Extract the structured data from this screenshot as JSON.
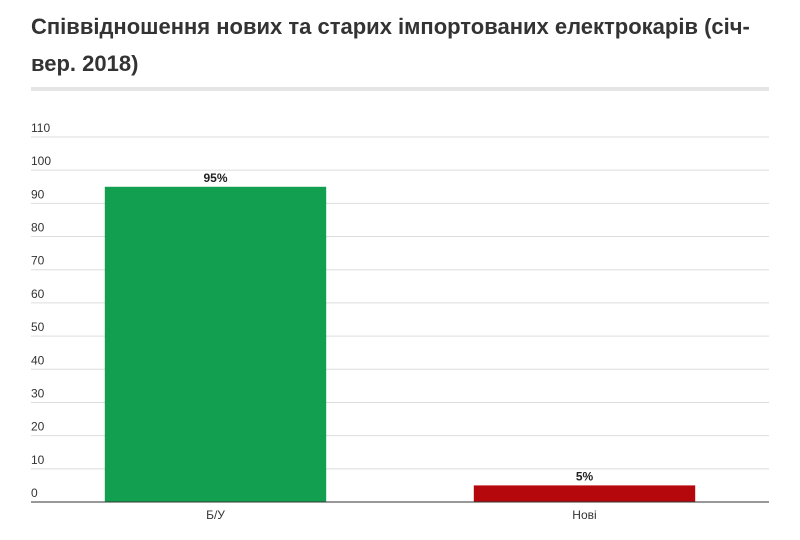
{
  "title": "Співвідношення нових та старих імпортованих електрокарів (січ-вер. 2018)",
  "chart_data": {
    "type": "bar",
    "title": "Співвідношення нових та старих імпортованих електрокарів (січ-вер. 2018)",
    "categories": [
      "Б/У",
      "Нові"
    ],
    "values": [
      95,
      5
    ],
    "data_labels": [
      "95%",
      "5%"
    ],
    "bar_colors": [
      "#12a050",
      "#b5080d"
    ],
    "ylim": [
      0,
      110
    ],
    "yticks": [
      0,
      10,
      20,
      30,
      40,
      50,
      60,
      70,
      80,
      90,
      100,
      110
    ],
    "xlabel": "",
    "ylabel": "",
    "grid": true,
    "legend": "none"
  }
}
